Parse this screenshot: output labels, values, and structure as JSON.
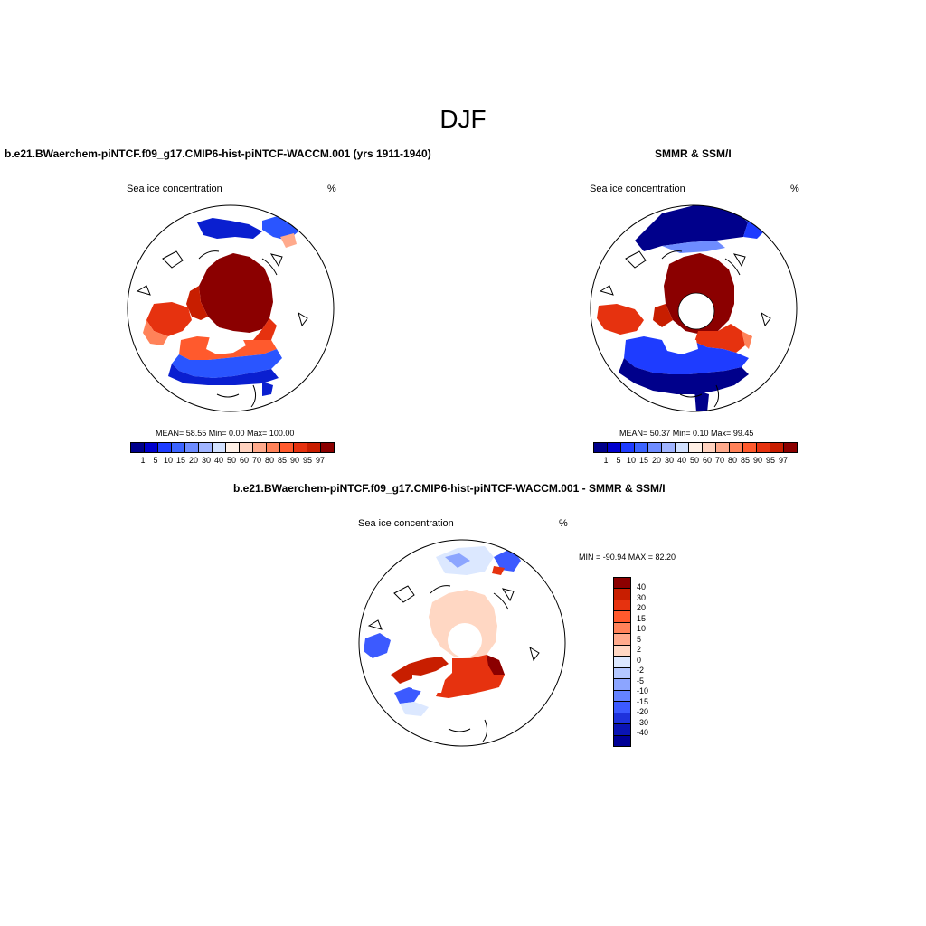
{
  "main_title": "DJF",
  "colors": {
    "seq": [
      "#00008b",
      "#0000cd",
      "#1e3cff",
      "#3c64ff",
      "#6e8cff",
      "#a0b4ff",
      "#d2e1ff",
      "#fff0e6",
      "#ffd2bf",
      "#ffaa8c",
      "#ff8259",
      "#ff5a2d",
      "#e6320f",
      "#c81e00",
      "#8b0000"
    ],
    "diff": [
      "#8b0000",
      "#c81e00",
      "#e6320f",
      "#ff5a2d",
      "#ff8259",
      "#ffaa8c",
      "#ffd7c3",
      "#dce8ff",
      "#b4c8ff",
      "#8ca5ff",
      "#6482ff",
      "#3c5aff",
      "#1e32dc",
      "#0a14b4",
      "#000096"
    ]
  },
  "panel_model": {
    "title": "b.e21.BWaerchem-piNTCF.f09_g17.CMIP6-hist-piNTCF-WACCM.001 (yrs 1911-1940)",
    "subtitle_left": "Sea ice concentration",
    "subtitle_right": "%",
    "stats": "MEAN=  58.55  Min=    0.00  Max= 100.00",
    "labels": [
      "1",
      "5",
      "10",
      "15",
      "20",
      "30",
      "40",
      "50",
      "60",
      "70",
      "80",
      "85",
      "90",
      "95",
      "97"
    ]
  },
  "panel_obs": {
    "title": "SMMR & SSM/I",
    "subtitle_left": "Sea ice concentration",
    "subtitle_right": "%",
    "stats": "MEAN=  50.37  Min=    0.10  Max=  99.45",
    "labels": [
      "1",
      "5",
      "10",
      "15",
      "20",
      "30",
      "40",
      "50",
      "60",
      "70",
      "80",
      "85",
      "90",
      "95",
      "97"
    ]
  },
  "panel_diff": {
    "title": "b.e21.BWaerchem-piNTCF.f09_g17.CMIP6-hist-piNTCF-WACCM.001 - SMMR & SSM/I",
    "subtitle_left": "Sea ice concentration",
    "subtitle_right": "%",
    "minmax": "MIN = -90.94 MAX =  82.20",
    "labels": [
      "40",
      "30",
      "20",
      "15",
      "10",
      "5",
      "2",
      "0",
      "-2",
      "-5",
      "-10",
      "-15",
      "-20",
      "-30",
      "-40"
    ]
  }
}
